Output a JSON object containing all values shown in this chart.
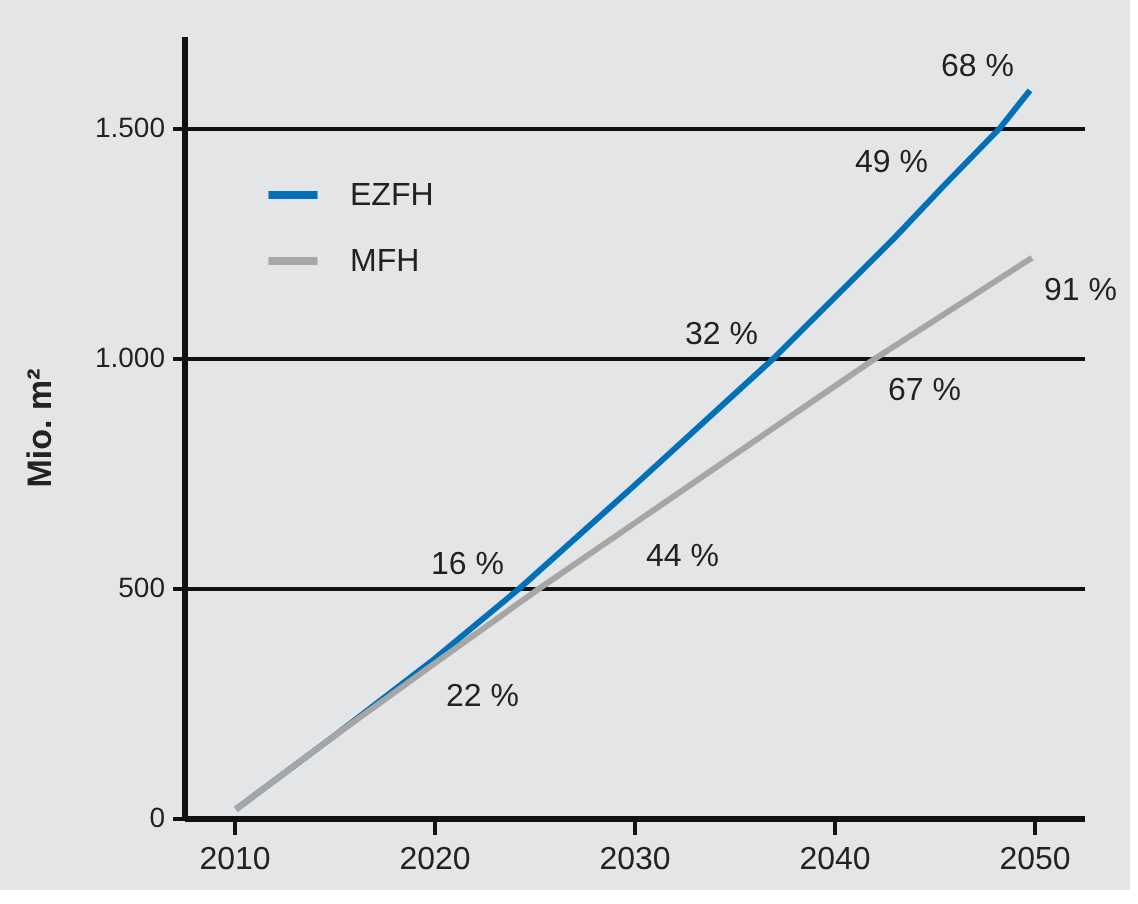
{
  "chart_data": {
    "type": "line",
    "ylabel": "Mio. m²",
    "xlim": [
      2007.5,
      2052.5
    ],
    "xticks": [
      2010,
      2020,
      2030,
      2040,
      2050
    ],
    "ylim": [
      0,
      1700
    ],
    "yticks": [
      0,
      500,
      {
        "value": 1000,
        "label": "1.000"
      },
      {
        "value": 1500,
        "label": "1.500"
      }
    ],
    "grid": "y",
    "legend": "top left",
    "line_style": "solid",
    "series": [
      {
        "name": "EZFH",
        "color": "#0070b8",
        "x": [
          2010.1,
          2015,
          2020,
          2024.3,
          2030,
          2037,
          2043,
          2045.5,
          2048.3,
          2049.8
        ],
        "values": [
          19,
          178,
          345,
          500,
          722,
          1000,
          1260,
          1375,
          1500,
          1582
        ]
      },
      {
        "name": "MFH",
        "color": "#a6a6a6",
        "x": [
          2010.1,
          2015,
          2020,
          2025.3,
          2030,
          2035,
          2042.1,
          2049.9
        ],
        "values": [
          19,
          178,
          335,
          500,
          640,
          789,
          1000,
          1218
        ]
      }
    ],
    "annotations": [
      {
        "text": "16 %",
        "x": 2024.3,
        "y": 500
      },
      {
        "text": "22 %",
        "x": 2020,
        "y": 335
      },
      {
        "text": "32 %",
        "x": 2037,
        "y": 1000
      },
      {
        "text": "44 %",
        "x": 2030,
        "y": 640
      },
      {
        "text": "49 %",
        "x": 2045.5,
        "y": 1375
      },
      {
        "text": "67 %",
        "x": 2042.1,
        "y": 1000
      },
      {
        "text": "68 %",
        "x": 2049.8,
        "y": 1582
      },
      {
        "text": "91 %",
        "x": 2049.9,
        "y": 1218
      }
    ]
  }
}
